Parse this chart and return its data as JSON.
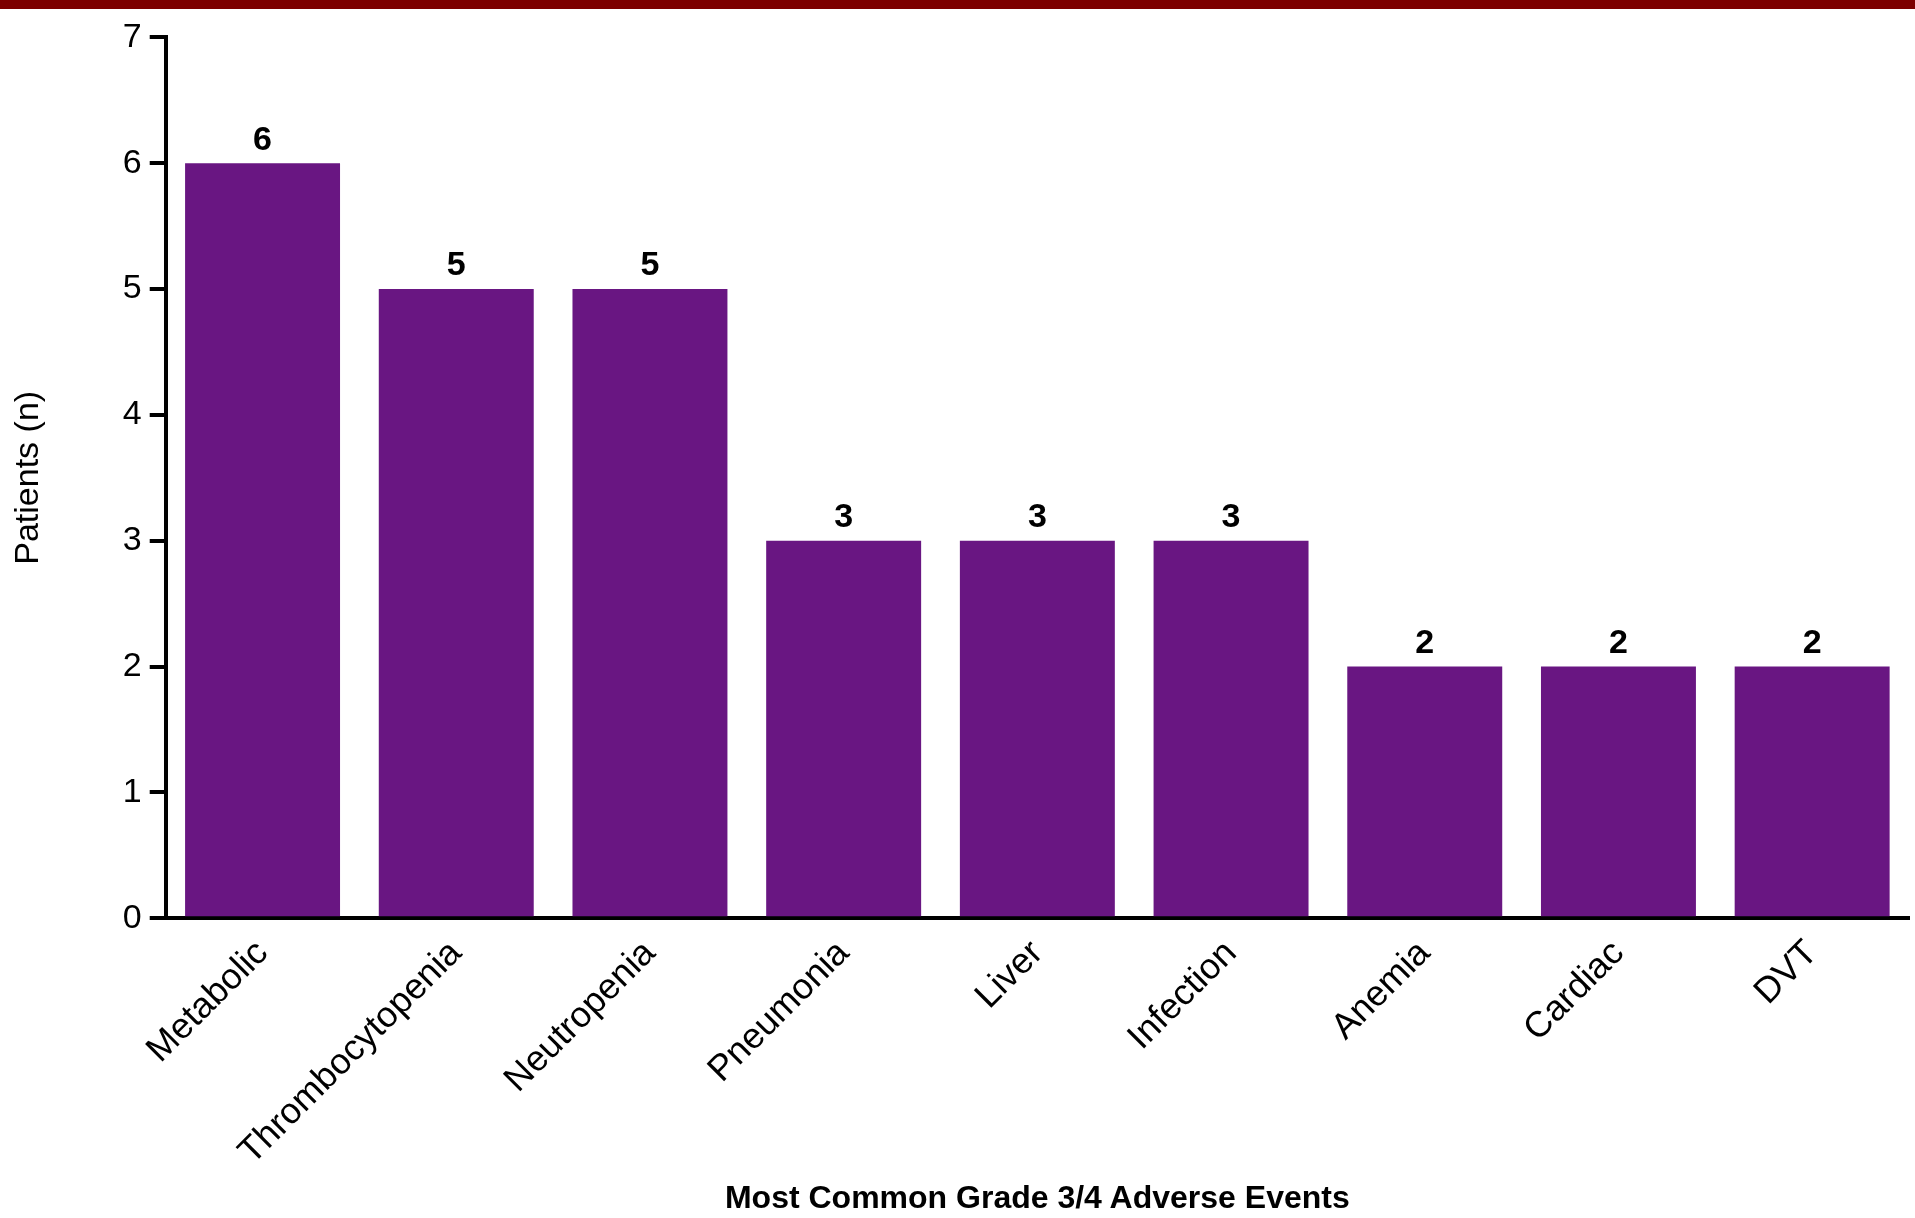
{
  "chart_data": {
    "type": "bar",
    "xlabel": "Most Common Grade 3/4 Adverse Events",
    "ylabel": "Patients (n)",
    "categories": [
      "Metabolic",
      "Thrombocytopenia",
      "Neutropenia",
      "Pneumonia",
      "Liver",
      "Infection",
      "Anemia",
      "Cardiac",
      "DVT"
    ],
    "values": [
      6,
      5,
      5,
      3,
      3,
      3,
      2,
      2,
      2
    ],
    "color": "#691682",
    "ylim": [
      0,
      7
    ],
    "yticks": [
      0,
      1,
      2,
      3,
      4,
      5,
      6,
      7
    ],
    "data_labels": true
  }
}
